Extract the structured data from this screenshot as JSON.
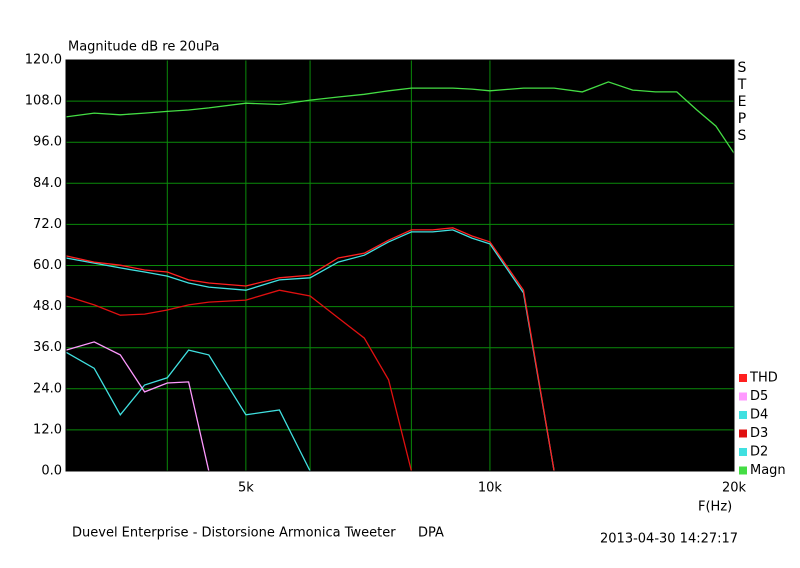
{
  "chart_data": {
    "type": "line",
    "title": "Magnitude dB re 20uPa",
    "x_label": "F(Hz)",
    "side_label": "STEPS",
    "footer_left": "Duevel Enterprise - Distorsione Armonica Tweeter",
    "footer_mid": "DPA",
    "footer_right": "2013-04-30 14:27:17",
    "xscale": "log",
    "xlim": [
      3000,
      20000
    ],
    "xticks": [
      {
        "value": 5000,
        "label": "5k"
      },
      {
        "value": 10000,
        "label": "10k"
      },
      {
        "value": 20000,
        "label": "20k"
      }
    ],
    "xminor": [
      4000,
      6000,
      8000
    ],
    "ylim": [
      0,
      120
    ],
    "yticks": [
      {
        "value": 0,
        "label": "0.0"
      },
      {
        "value": 12,
        "label": "12.0"
      },
      {
        "value": 24,
        "label": "24.0"
      },
      {
        "value": 36,
        "label": "36.0"
      },
      {
        "value": 48,
        "label": "48.0"
      },
      {
        "value": 60,
        "label": "60.0"
      },
      {
        "value": 72,
        "label": "72.0"
      },
      {
        "value": 84,
        "label": "84.0"
      },
      {
        "value": 96,
        "label": "96.0"
      },
      {
        "value": 108,
        "label": "108.0"
      },
      {
        "value": 120,
        "label": "120.0"
      }
    ],
    "grid": true,
    "grid_color": "#0a8a0a",
    "background": "#000000",
    "x": [
      3000,
      3250,
      3500,
      3750,
      4000,
      4250,
      4500,
      5000,
      5500,
      6000,
      6500,
      7000,
      7500,
      8000,
      8500,
      9000,
      9500,
      10000,
      11000,
      12000,
      13000,
      14000,
      15000,
      16000,
      17000,
      18000,
      19000,
      20000
    ],
    "series": [
      {
        "name": "THD",
        "color": "#ff2020",
        "values": [
          62.8,
          61,
          60.1,
          58.7,
          58.1,
          55.8,
          54.9,
          54,
          56.4,
          57.2,
          62.2,
          63.6,
          67.4,
          70.4,
          70.4,
          71,
          68.6,
          66.9,
          52.8,
          0,
          null,
          null,
          null,
          null,
          null,
          null,
          null,
          null
        ]
      },
      {
        "name": "D5",
        "color": "#ff99ff",
        "values": [
          35.3,
          37.7,
          33.9,
          23.1,
          25.7,
          26,
          0,
          null,
          null,
          null,
          null,
          null,
          null,
          null,
          null,
          null,
          null,
          null,
          null,
          null,
          null,
          null,
          null,
          null,
          null,
          null,
          null,
          null
        ]
      },
      {
        "name": "D4",
        "color": "#40e0e0",
        "values": [
          34.7,
          30,
          16.4,
          25.1,
          27.2,
          35.3,
          33.9,
          16.4,
          17.8,
          0,
          null,
          null,
          null,
          null,
          null,
          null,
          null,
          null,
          null,
          null,
          null,
          null,
          null,
          null,
          null,
          null,
          null,
          null
        ]
      },
      {
        "name": "D3",
        "color": "#e01010",
        "values": [
          51.1,
          48.5,
          45.5,
          45.8,
          47,
          48.5,
          49.3,
          49.9,
          52.8,
          51.1,
          44.7,
          38.8,
          26.6,
          0,
          null,
          null,
          null,
          null,
          null,
          null,
          null,
          null,
          null,
          null,
          null,
          null,
          null,
          null
        ]
      },
      {
        "name": "D2",
        "color": "#40e0e0",
        "values": [
          62.2,
          60.7,
          59.3,
          58.1,
          56.9,
          54.9,
          53.7,
          52.8,
          55.8,
          56.4,
          61,
          63,
          66.9,
          69.8,
          69.8,
          70.4,
          68,
          66.3,
          52,
          0,
          null,
          null,
          null,
          null,
          null,
          null,
          null,
          null
        ]
      },
      {
        "name": "Magn",
        "color": "#44dd44",
        "values": [
          103.4,
          104.5,
          104,
          104.5,
          105,
          105.4,
          106,
          107.4,
          107,
          108.3,
          109.2,
          110,
          111,
          111.8,
          111.8,
          111.8,
          111.5,
          111,
          111.8,
          111.8,
          110.7,
          113.6,
          111.2,
          110.7,
          110.7,
          105.4,
          100.7,
          92.8
        ]
      }
    ]
  }
}
